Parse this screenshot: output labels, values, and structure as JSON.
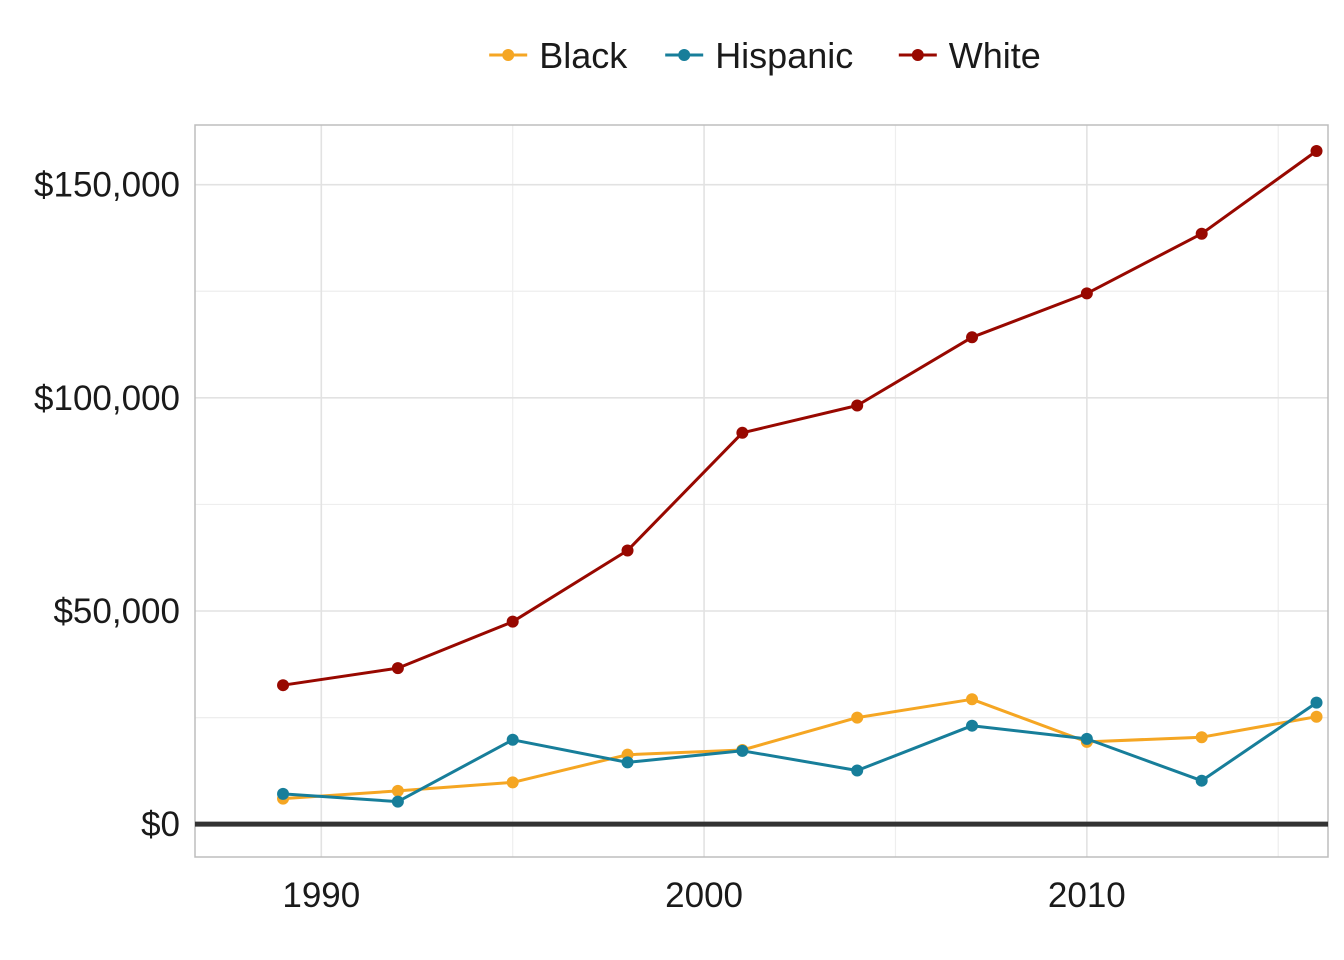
{
  "chart_data": {
    "type": "line",
    "x": [
      1989,
      1992,
      1995,
      1998,
      2001,
      2004,
      2007,
      2010,
      2013,
      2016
    ],
    "series": [
      {
        "name": "Black",
        "color": "#F5A623",
        "values": [
          6000,
          7800,
          9800,
          16300,
          17400,
          25000,
          29300,
          19300,
          20400,
          25200
        ]
      },
      {
        "name": "Hispanic",
        "color": "#177E9A",
        "values": [
          7100,
          5300,
          19800,
          14500,
          17200,
          12600,
          23100,
          20000,
          10200,
          28500
        ]
      },
      {
        "name": "White",
        "color": "#980800",
        "values": [
          32600,
          36600,
          47500,
          64200,
          91800,
          98200,
          114200,
          124500,
          138500,
          157900
        ]
      }
    ],
    "xlim": [
      1986.7,
      2016.3
    ],
    "ylim": [
      -7700,
      164000
    ],
    "x_ticks": [
      "1990",
      "2000",
      "2010"
    ],
    "x_tick_values": [
      1990,
      2000,
      2010
    ],
    "y_ticks": [
      "$0",
      "$50,000",
      "$100,000",
      "$150,000"
    ],
    "y_tick_values": [
      0,
      50000,
      100000,
      150000
    ],
    "grid": true,
    "zero_line": true,
    "legend_position": "top"
  }
}
